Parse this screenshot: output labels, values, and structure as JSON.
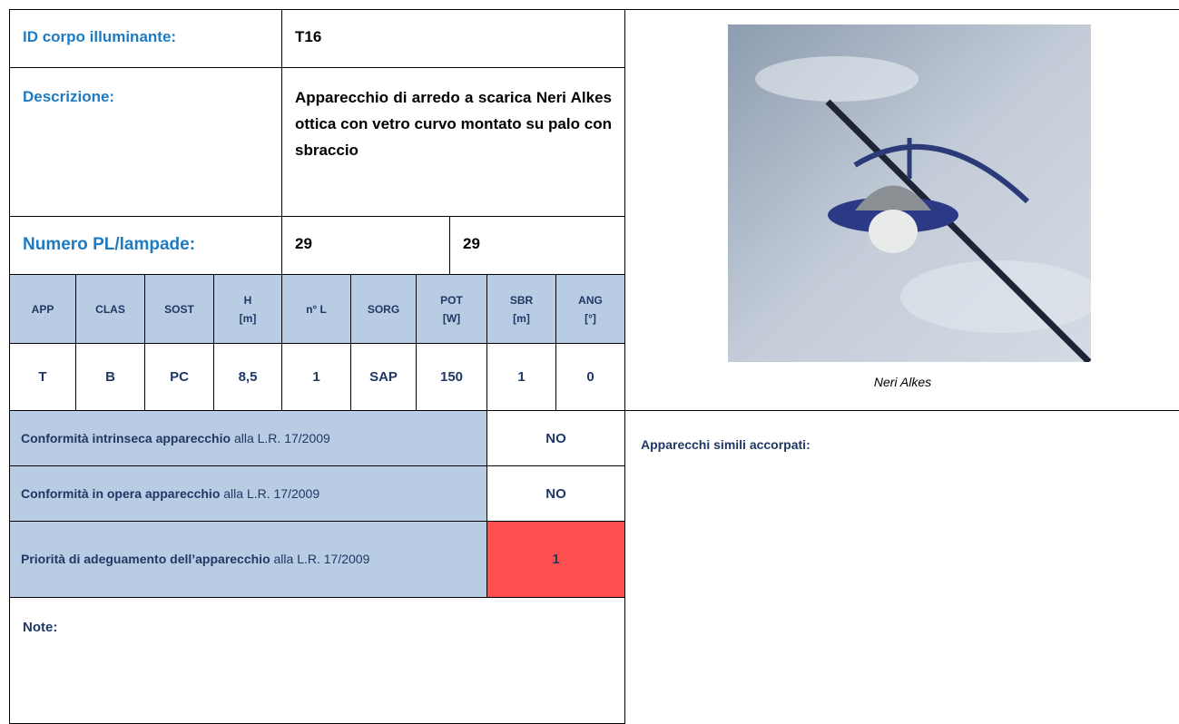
{
  "header": {
    "id_label": "ID corpo illuminante:",
    "id_value": "T16",
    "descrizione_label": "Descrizione:",
    "descrizione_value": "Apparecchio di arredo a scarica Neri Alkes ottica con vetro curvo montato su palo con sbraccio",
    "numero_label": "Numero PL/lampade:",
    "numero_values": [
      "29",
      "29"
    ]
  },
  "table": {
    "headers": [
      "APP",
      "CLAS",
      "SOST",
      "H\n[m]",
      "n° L",
      "SORG",
      "POT\n[W]",
      "SBR\n[m]",
      "ANG\n[°]"
    ],
    "rows": [
      [
        "T",
        "B",
        "PC",
        "8,5",
        "1",
        "SAP",
        "150",
        "1",
        "0"
      ]
    ]
  },
  "conformita": [
    {
      "bold": "Conformità intrinseca apparecchio",
      "text": " alla L.R. 17/2009",
      "value": "NO"
    },
    {
      "bold": "Conformità in opera apparecchio",
      "text": " alla L.R. 17/2009",
      "value": "NO"
    },
    {
      "bold": "Priorità di adeguamento dell’apparecchio",
      "text": " alla L.R. 17/2009",
      "value": "1"
    }
  ],
  "note_label": "Note:",
  "photo": {
    "caption": "Neri Alkes"
  },
  "similar_label": "Apparecchi simili accorpati:"
}
